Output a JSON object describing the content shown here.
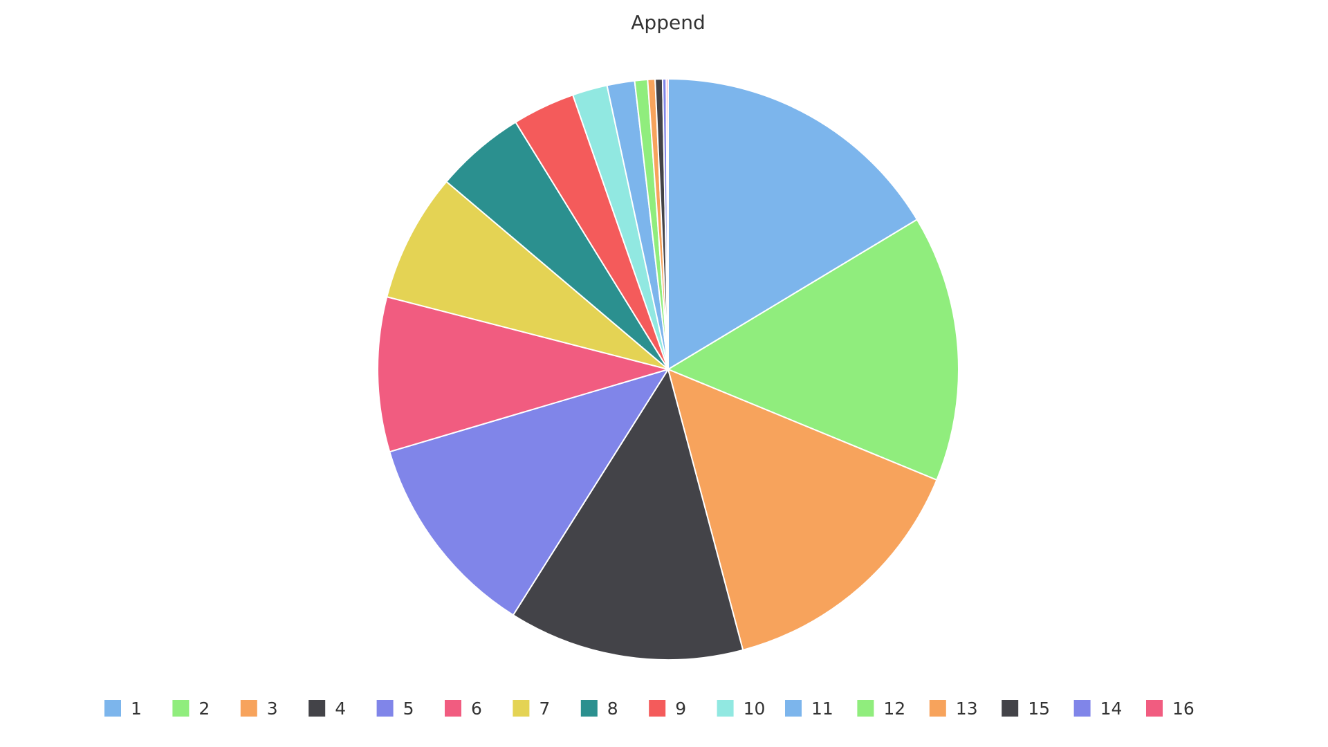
{
  "chart_data": {
    "type": "pie",
    "title": "Append",
    "categories": [
      "1",
      "2",
      "3",
      "4",
      "5",
      "6",
      "7",
      "8",
      "9",
      "10",
      "11",
      "12",
      "13",
      "15",
      "14",
      "16"
    ],
    "values": [
      16.0,
      14.5,
      14.3,
      12.8,
      11.2,
      8.4,
      7.0,
      4.9,
      3.4,
      1.9,
      1.5,
      0.7,
      0.4,
      0.4,
      0.2,
      0.1
    ],
    "value_unit": "percent",
    "colors": [
      "#7cb5ec",
      "#90ed7d",
      "#f7a35c",
      "#434348",
      "#8085e9",
      "#f15c80",
      "#e4d354",
      "#2b908f",
      "#f45b5b",
      "#91e8e1",
      "#7cb5ec",
      "#90ed7d",
      "#f7a35c",
      "#434348",
      "#8085e9",
      "#f15c80"
    ],
    "start_angle_deg": 0,
    "direction": "clockwise",
    "legend_position": "bottom"
  }
}
